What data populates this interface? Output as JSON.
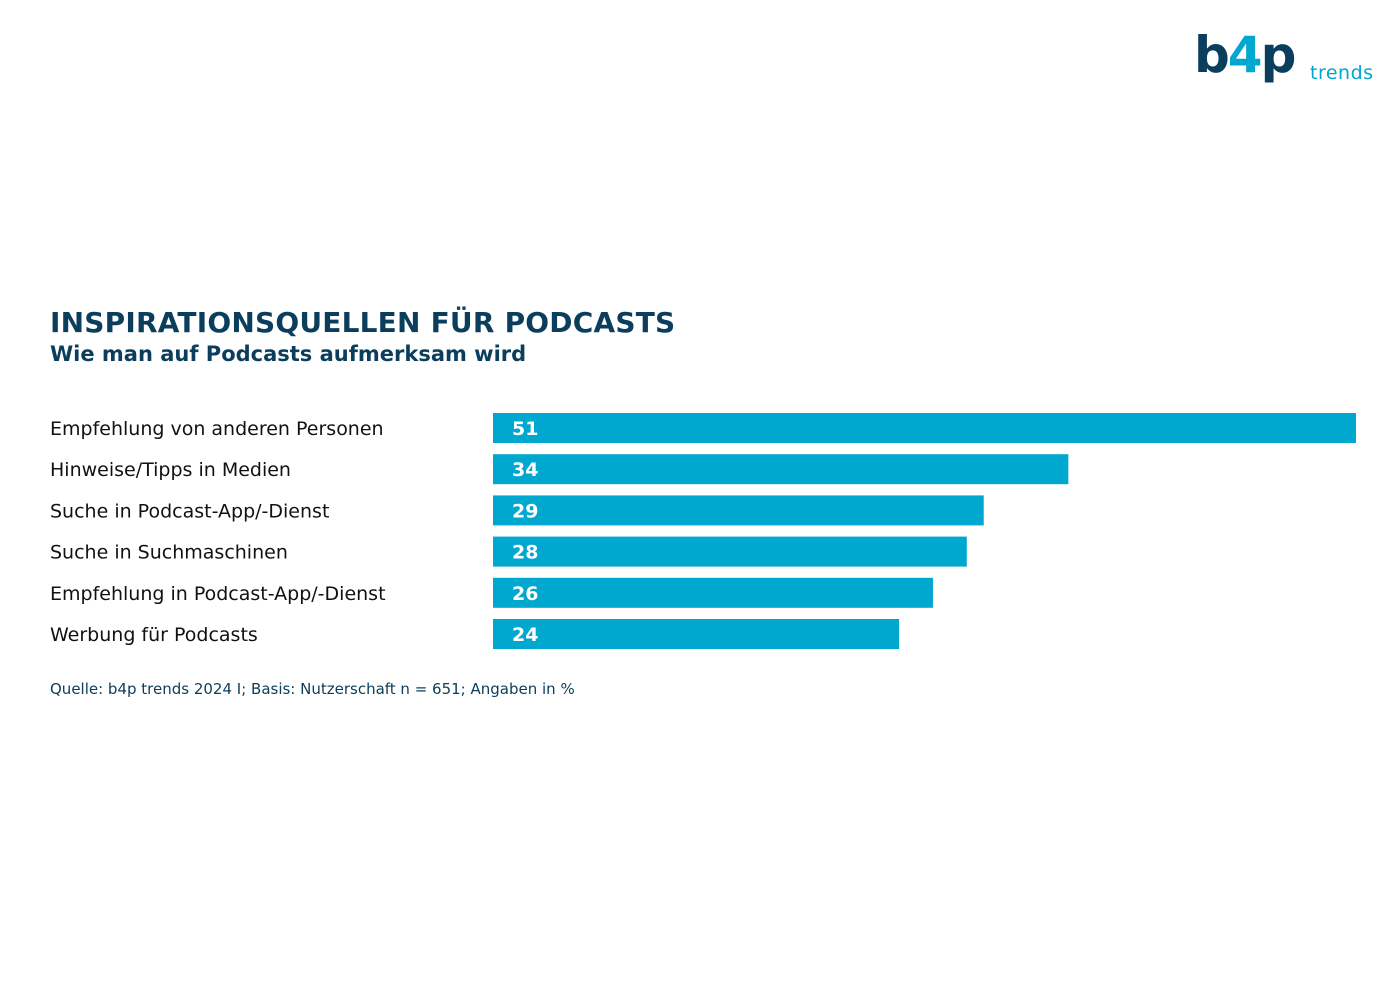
{
  "logo": {
    "brand_prefix": "b",
    "brand_accent": "4",
    "brand_suffix": "p",
    "tagline": "trends",
    "colors": {
      "primary": "#0b3d5c",
      "accent": "#00a7cf"
    }
  },
  "chart_data": {
    "type": "bar",
    "orientation": "horizontal",
    "title": "INSPIRATIONSQUELLEN FÜR PODCASTS",
    "subtitle": "Wie man auf Podcasts aufmerksam wird",
    "categories": [
      "Empfehlung von anderen Personen",
      "Hinweise/Tipps in Medien",
      "Suche in Podcast-App/-Dienst",
      "Suche in Suchmaschinen",
      "Empfehlung in Podcast-App/-Dienst",
      "Werbung für Podcasts"
    ],
    "values": [
      51,
      34,
      29,
      28,
      26,
      24
    ],
    "value_labels": [
      "51",
      "34",
      "29",
      "28",
      "26",
      "24"
    ],
    "xlim": [
      0,
      51
    ],
    "grid": false,
    "legend": "none",
    "bar_color": "#00a7cf",
    "source": "Quelle: b4p trends 2024 I; Basis: Nutzerschaft n = 651; Angaben in %"
  }
}
